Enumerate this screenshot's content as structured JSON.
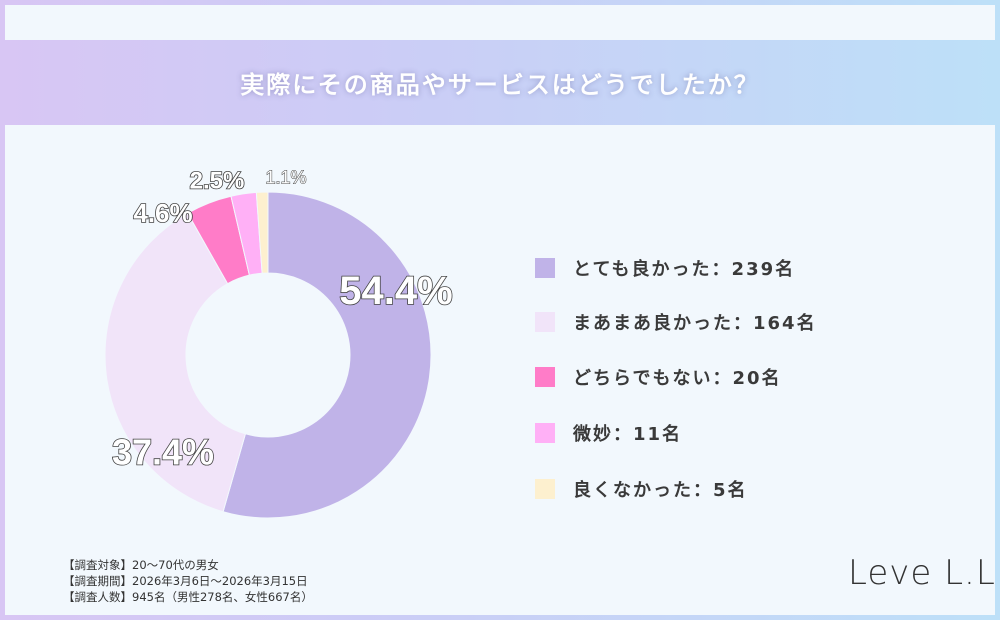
{
  "header": {
    "title": "実際にその商品やサービスはどうでしたか？"
  },
  "chart_data": {
    "type": "pie",
    "donut": true,
    "title": "実際にその商品やサービスはどうでしたか？",
    "categories": [
      "とても良かった",
      "まあまあ良かった",
      "どちらでもない",
      "微妙",
      "良くなかった"
    ],
    "values": [
      239,
      164,
      20,
      11,
      5
    ],
    "percent_labels": [
      "54.4%",
      "37.4%",
      "4.6%",
      "2.5%",
      "1.1%"
    ],
    "colors": [
      "#c0b3e8",
      "#f1e4f9",
      "#ff7cc8",
      "#ffb0f6",
      "#fdf0cf"
    ],
    "legend": [
      "とても良かった：239名",
      "まあまあ良かった：164名",
      "どちらでもない：20名",
      "微妙：11名",
      "良くなかった：5名"
    ],
    "legend_position": "right"
  },
  "notes": [
    "【調査対象】20〜70代の男女",
    "【調査期間】2026年3月6日〜2026年3月15日",
    "【調査人数】945名（男性278名、女性667名）"
  ],
  "logo": "LeveL.L"
}
